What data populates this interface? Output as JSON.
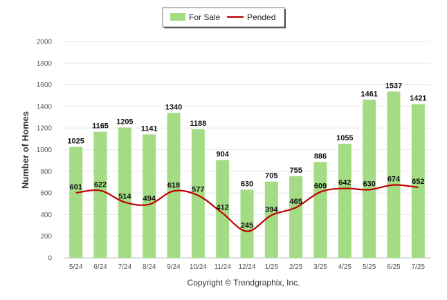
{
  "chart_data": {
    "type": "bar",
    "categories": [
      "5/24",
      "6/24",
      "7/24",
      "8/24",
      "9/24",
      "10/24",
      "11/24",
      "12/24",
      "1/25",
      "2/25",
      "3/25",
      "4/25",
      "5/25",
      "6/25",
      "7/25"
    ],
    "series": [
      {
        "name": "For Sale",
        "type": "bar",
        "color": "#a3dc85",
        "values": [
          1025,
          1165,
          1205,
          1141,
          1340,
          1188,
          904,
          630,
          705,
          755,
          886,
          1055,
          1461,
          1537,
          1421
        ]
      },
      {
        "name": "Pended",
        "type": "line",
        "color": "#c00000",
        "values": [
          601,
          622,
          514,
          494,
          618,
          577,
          412,
          245,
          394,
          465,
          609,
          642,
          630,
          674,
          652
        ]
      }
    ],
    "xlabel": "",
    "ylabel": "Number of Homes",
    "ylim": [
      0,
      2000
    ],
    "yticks": [
      0,
      200,
      400,
      600,
      800,
      1000,
      1200,
      1400,
      1600,
      1800,
      2000
    ],
    "grid": true,
    "legend_position": "top-center"
  },
  "footer": {
    "copyright": "Copyright © Trendgraphix, Inc."
  }
}
